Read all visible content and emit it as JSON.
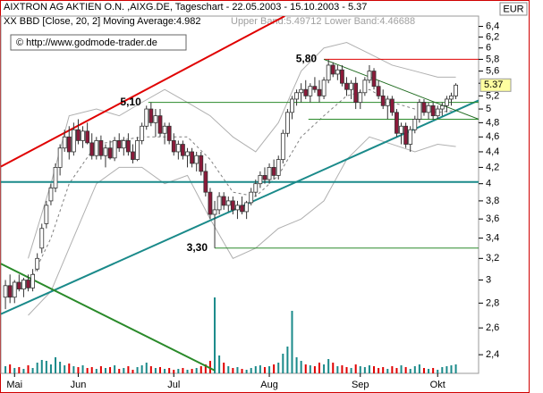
{
  "chart_data": {
    "type": "candlestick",
    "header": {
      "title": "AIXTRON AG AKTIEN O.N. ,AIXG.DE, Tageschart - 22.05.2003 - 15.10.2003 - 5.37",
      "indicator": "XX BBD [Close, 20, 2] Moving Average:4.982",
      "bands": "Upper Band:5.49712 Lower Band:4.46688",
      "source": "© http://www.godmode-trader.de"
    },
    "currency": "EUR",
    "log_scale": true,
    "ylim": [
      2.27,
      6.6
    ],
    "xlim": [
      -1,
      104
    ],
    "yticks": [
      {
        "value": 2.4,
        "label": "2,4"
      },
      {
        "value": 2.6,
        "label": "2,6"
      },
      {
        "value": 2.8,
        "label": "2,8"
      },
      3,
      {
        "value": 3.2,
        "label": "3,2"
      },
      {
        "value": 3.4,
        "label": "3,4"
      },
      {
        "value": 3.6,
        "label": "3,6"
      },
      {
        "value": 3.8,
        "label": "3,8"
      },
      4,
      {
        "value": 4.2,
        "label": "4,2"
      },
      {
        "value": 4.4,
        "label": "4,4"
      },
      {
        "value": 4.6,
        "label": "4,6"
      },
      {
        "value": 4.8,
        "label": "4,8"
      },
      5,
      {
        "value": 5.2,
        "label": "5,2"
      },
      {
        "value": 5.4,
        "label": "5,4"
      },
      {
        "value": 5.6,
        "label": "5,6"
      },
      {
        "value": 5.8,
        "label": "5,8"
      },
      6,
      {
        "value": 6.2,
        "label": "6,2"
      },
      {
        "value": 6.4,
        "label": "6,4"
      }
    ],
    "xticks": [
      {
        "value": 2,
        "label": "Mai"
      },
      {
        "value": 16,
        "label": "Jun"
      },
      {
        "value": 37,
        "label": "Jul"
      },
      {
        "value": 58,
        "label": "Aug"
      },
      {
        "value": 78,
        "label": "Sep"
      },
      {
        "value": 95,
        "label": "Okt"
      }
    ],
    "up_color": "#ffffff",
    "down_color": "#8b1a3a",
    "candles": [
      [
        2.85,
        3.0,
        2.75,
        2.95
      ],
      [
        2.95,
        3.05,
        2.8,
        2.85
      ],
      [
        2.85,
        3.0,
        2.8,
        2.98
      ],
      [
        2.98,
        3.05,
        2.9,
        2.92
      ],
      [
        2.92,
        3.02,
        2.85,
        3.0
      ],
      [
        3.0,
        3.05,
        2.9,
        2.93
      ],
      [
        2.93,
        3.1,
        2.9,
        3.05
      ],
      [
        3.1,
        3.25,
        3.08,
        3.2
      ],
      [
        3.3,
        3.55,
        3.25,
        3.5
      ],
      [
        3.55,
        3.8,
        3.5,
        3.75
      ],
      [
        3.8,
        4.0,
        3.75,
        3.95
      ],
      [
        3.95,
        4.25,
        3.9,
        4.2
      ],
      [
        4.2,
        4.5,
        4.1,
        4.45
      ],
      [
        4.45,
        4.7,
        4.4,
        4.6
      ],
      [
        4.6,
        4.75,
        4.3,
        4.4
      ],
      [
        4.4,
        4.8,
        4.35,
        4.7
      ],
      [
        4.7,
        4.85,
        4.5,
        4.55
      ],
      [
        4.55,
        4.75,
        4.45,
        4.68
      ],
      [
        4.68,
        4.8,
        4.5,
        4.52
      ],
      [
        4.52,
        4.65,
        4.3,
        4.35
      ],
      [
        4.35,
        4.6,
        4.3,
        4.55
      ],
      [
        4.55,
        4.62,
        4.3,
        4.35
      ],
      [
        4.35,
        4.5,
        4.2,
        4.45
      ],
      [
        4.45,
        4.55,
        4.3,
        4.32
      ],
      [
        4.32,
        4.6,
        4.28,
        4.55
      ],
      [
        4.55,
        4.65,
        4.4,
        4.45
      ],
      [
        4.45,
        4.6,
        4.35,
        4.55
      ],
      [
        4.55,
        4.65,
        4.35,
        4.4
      ],
      [
        4.4,
        4.5,
        4.25,
        4.3
      ],
      [
        4.3,
        4.6,
        4.28,
        4.55
      ],
      [
        4.55,
        4.8,
        4.5,
        4.75
      ],
      [
        4.75,
        5.05,
        4.7,
        5.0
      ],
      [
        5.0,
        5.1,
        4.75,
        4.8
      ],
      [
        4.8,
        5.0,
        4.6,
        4.9
      ],
      [
        4.9,
        5.0,
        4.6,
        4.65
      ],
      [
        4.65,
        4.8,
        4.5,
        4.75
      ],
      [
        4.75,
        4.8,
        4.5,
        4.55
      ],
      [
        4.55,
        4.65,
        4.35,
        4.4
      ],
      [
        4.4,
        4.55,
        4.3,
        4.5
      ],
      [
        4.5,
        4.55,
        4.3,
        4.35
      ],
      [
        4.35,
        4.45,
        4.2,
        4.4
      ],
      [
        4.4,
        4.45,
        4.2,
        4.25
      ],
      [
        4.25,
        4.4,
        4.15,
        4.35
      ],
      [
        4.35,
        4.4,
        4.1,
        4.15
      ],
      [
        4.15,
        4.25,
        3.85,
        3.9
      ],
      [
        3.9,
        3.95,
        3.6,
        3.65
      ],
      [
        3.65,
        3.8,
        3.3,
        3.7
      ],
      [
        3.7,
        3.9,
        3.65,
        3.85
      ],
      [
        3.85,
        3.9,
        3.7,
        3.75
      ],
      [
        3.75,
        3.85,
        3.68,
        3.8
      ],
      [
        3.8,
        3.85,
        3.65,
        3.7
      ],
      [
        3.7,
        3.8,
        3.6,
        3.75
      ],
      [
        3.75,
        3.85,
        3.65,
        3.68
      ],
      [
        3.68,
        3.8,
        3.6,
        3.78
      ],
      [
        3.78,
        3.95,
        3.75,
        3.9
      ],
      [
        3.9,
        4.05,
        3.85,
        4.0
      ],
      [
        4.0,
        4.15,
        3.95,
        4.1
      ],
      [
        4.1,
        4.2,
        4.0,
        4.05
      ],
      [
        4.05,
        4.25,
        4.0,
        4.2
      ],
      [
        4.2,
        4.3,
        4.05,
        4.1
      ],
      [
        4.1,
        4.35,
        4.05,
        4.3
      ],
      [
        4.3,
        4.7,
        4.25,
        4.65
      ],
      [
        4.65,
        5.0,
        4.6,
        4.95
      ],
      [
        4.95,
        5.2,
        4.85,
        5.15
      ],
      [
        5.15,
        5.3,
        5.05,
        5.25
      ],
      [
        5.25,
        5.4,
        5.1,
        5.3
      ],
      [
        5.3,
        5.45,
        5.15,
        5.2
      ],
      [
        5.2,
        5.4,
        5.1,
        5.35
      ],
      [
        5.35,
        5.5,
        5.25,
        5.3
      ],
      [
        5.3,
        5.45,
        5.1,
        5.2
      ],
      [
        5.2,
        5.5,
        5.15,
        5.45
      ],
      [
        5.45,
        5.8,
        5.4,
        5.7
      ],
      [
        5.7,
        5.75,
        5.5,
        5.55
      ],
      [
        5.55,
        5.7,
        5.45,
        5.62
      ],
      [
        5.62,
        5.7,
        5.35,
        5.4
      ],
      [
        5.4,
        5.5,
        5.2,
        5.3
      ],
      [
        5.3,
        5.45,
        5.15,
        5.4
      ],
      [
        5.4,
        5.5,
        5.0,
        5.1
      ],
      [
        5.1,
        5.3,
        5.0,
        5.25
      ],
      [
        5.25,
        5.5,
        5.2,
        5.45
      ],
      [
        5.45,
        5.7,
        5.4,
        5.6
      ],
      [
        5.6,
        5.65,
        5.3,
        5.35
      ],
      [
        5.35,
        5.45,
        5.15,
        5.2
      ],
      [
        5.2,
        5.3,
        5.0,
        5.05
      ],
      [
        5.05,
        5.2,
        4.85,
        5.15
      ],
      [
        5.15,
        5.2,
        4.9,
        4.95
      ],
      [
        4.95,
        5.0,
        4.6,
        4.65
      ],
      [
        4.65,
        4.8,
        4.5,
        4.75
      ],
      [
        4.75,
        4.8,
        4.45,
        4.5
      ],
      [
        4.5,
        4.75,
        4.4,
        4.7
      ],
      [
        4.7,
        4.9,
        4.65,
        4.85
      ],
      [
        4.85,
        5.15,
        4.8,
        5.1
      ],
      [
        5.1,
        5.15,
        4.9,
        4.95
      ],
      [
        4.95,
        5.1,
        4.85,
        5.05
      ],
      [
        5.05,
        5.1,
        4.85,
        4.9
      ],
      [
        4.9,
        5.05,
        4.85,
        5.0
      ],
      [
        5.0,
        5.1,
        4.9,
        5.05
      ],
      [
        5.05,
        5.2,
        4.95,
        5.15
      ],
      [
        5.15,
        5.25,
        5.05,
        5.2
      ],
      [
        5.2,
        5.4,
        5.15,
        5.37
      ]
    ],
    "volume": [
      8,
      10,
      6,
      7,
      5,
      9,
      6,
      12,
      15,
      14,
      10,
      18,
      13,
      9,
      11,
      8,
      7,
      9,
      6,
      7,
      5,
      8,
      6,
      7,
      9,
      5,
      6,
      8,
      4,
      7,
      9,
      12,
      8,
      6,
      7,
      5,
      6,
      4,
      5,
      6,
      4,
      5,
      6,
      8,
      10,
      14,
      85,
      20,
      12,
      8,
      6,
      7,
      5,
      4,
      6,
      8,
      9,
      7,
      8,
      10,
      12,
      22,
      30,
      70,
      18,
      14,
      10,
      9,
      8,
      12,
      10,
      16,
      12,
      8,
      9,
      7,
      6,
      10,
      8,
      7,
      9,
      8,
      6,
      7,
      5,
      8,
      6,
      9,
      7,
      5,
      8,
      10,
      6,
      5,
      6,
      4,
      7,
      8,
      9,
      10
    ],
    "overlays": [
      {
        "color": "#b0b0b0",
        "dash": false,
        "x": [
          5,
          10,
          14,
          20,
          25,
          30,
          35,
          40,
          45,
          50,
          55,
          60,
          65,
          70,
          75,
          80,
          85,
          90,
          95,
          99
        ],
        "values": [
          3.2,
          4.0,
          4.9,
          5.0,
          4.9,
          5.1,
          5.3,
          5.1,
          4.9,
          4.6,
          4.4,
          4.8,
          5.6,
          6.0,
          6.1,
          5.9,
          5.7,
          5.6,
          5.5,
          5.5
        ]
      },
      {
        "color": "#b0b0b0",
        "dash": false,
        "x": [
          5,
          10,
          14,
          20,
          25,
          30,
          35,
          40,
          45,
          50,
          55,
          60,
          65,
          70,
          75,
          80,
          85,
          90,
          95,
          99
        ],
        "values": [
          2.7,
          2.9,
          3.3,
          4.0,
          4.2,
          4.2,
          4.0,
          4.1,
          3.6,
          3.2,
          3.3,
          3.5,
          3.6,
          3.8,
          4.3,
          4.6,
          4.5,
          4.4,
          4.5,
          4.47
        ]
      },
      {
        "color": "#808080",
        "dash": true,
        "x": [
          5,
          10,
          14,
          20,
          25,
          30,
          35,
          40,
          45,
          50,
          55,
          60,
          65,
          70,
          75,
          80,
          85,
          90,
          95,
          99
        ],
        "values": [
          2.95,
          3.4,
          4.0,
          4.5,
          4.55,
          4.6,
          4.6,
          4.6,
          4.3,
          3.9,
          3.85,
          4.1,
          4.6,
          4.9,
          5.2,
          5.3,
          5.1,
          5.0,
          4.95,
          4.98
        ]
      }
    ],
    "lines": [
      {
        "color": "#e00000",
        "width": 2,
        "x": [
          -1,
          61.4
        ],
        "values": [
          4.21,
          6.6
        ]
      },
      {
        "color": "#1a8a8a",
        "width": 2,
        "x": [
          -1,
          104
        ],
        "values": [
          2.71,
          5.13
        ]
      },
      {
        "color": "#1a8a8a",
        "width": 2,
        "x": [
          -1,
          104
        ],
        "values": [
          4.02,
          4.02
        ]
      },
      {
        "color": "#2a8a2a",
        "width": 2,
        "x": [
          -1,
          46
        ],
        "values": [
          3.15,
          2.29
        ]
      },
      {
        "color": "#2a8a2a",
        "width": 1,
        "x": [
          31.4,
          104
        ],
        "values": [
          5.1,
          5.1
        ],
        "label": "5,10"
      },
      {
        "color": "#2a8a2a",
        "width": 1,
        "x": [
          46,
          104
        ],
        "values": [
          3.3,
          3.3
        ],
        "label": "3,30"
      },
      {
        "color": "#e00000",
        "width": 1,
        "x": [
          70,
          104
        ],
        "values": [
          5.8,
          5.8
        ],
        "label": "5,80"
      },
      {
        "color": "#2a8a2a",
        "width": 1,
        "x": [
          66.6,
          104
        ],
        "values": [
          4.85,
          4.85
        ]
      },
      {
        "color": "#1f6b1f",
        "width": 1,
        "x": [
          70,
          104
        ],
        "values": [
          5.8,
          4.85
        ]
      }
    ]
  }
}
